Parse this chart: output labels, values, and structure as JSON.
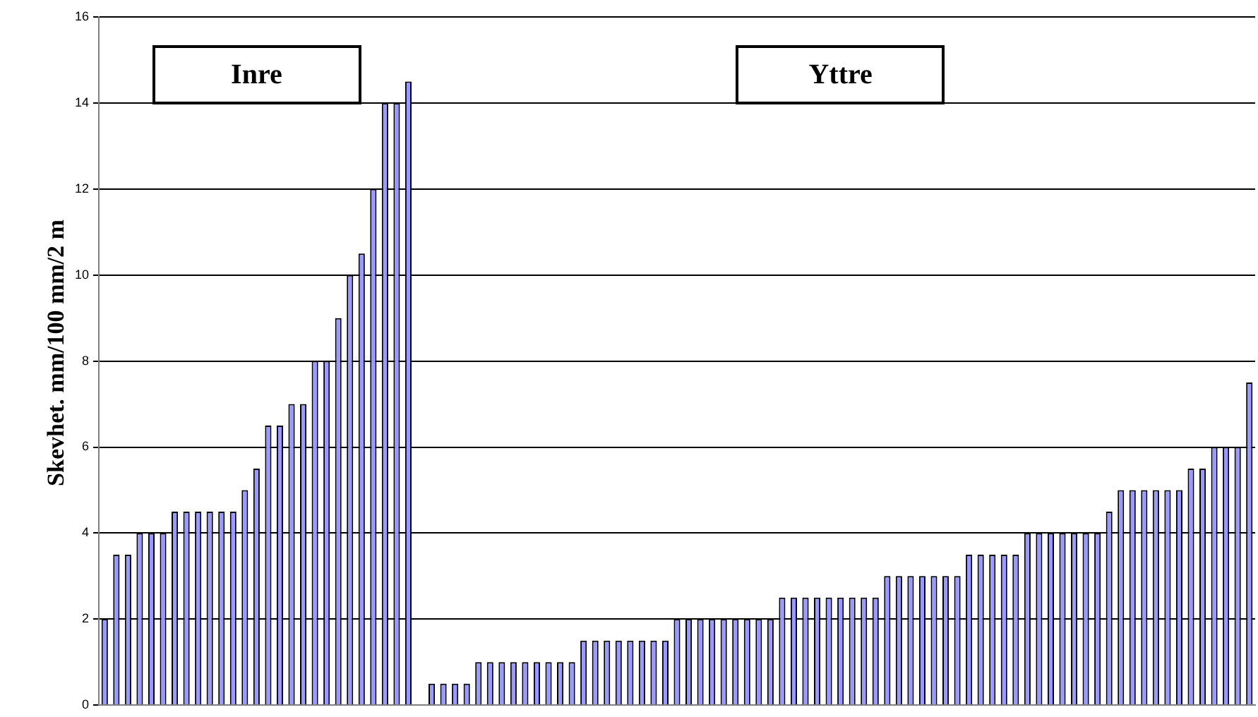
{
  "chart_data": {
    "type": "bar",
    "ylabel": "Skevhet. mm/100 mm/2 m",
    "annotations": [
      "Inre",
      "Yttre"
    ],
    "categories": [
      null,
      null,
      null,
      null,
      null,
      null,
      null,
      null,
      null,
      null,
      null,
      null,
      null,
      null,
      null,
      null,
      null,
      null,
      null,
      null,
      null,
      null,
      null,
      null,
      null,
      null,
      null,
      null,
      null,
      null,
      null,
      null,
      null,
      null,
      null,
      null,
      null,
      null,
      null,
      null,
      null,
      null,
      null,
      null,
      null,
      null,
      null,
      null,
      null,
      null,
      null,
      null,
      null,
      null,
      null,
      null,
      null,
      null,
      null,
      null,
      null,
      null,
      null,
      null,
      null,
      null,
      null,
      null,
      null,
      null,
      null,
      null,
      null,
      null,
      null,
      null,
      null,
      null,
      null,
      null,
      null,
      null,
      null,
      null,
      null,
      null,
      null,
      null,
      null,
      null,
      null,
      null,
      null,
      null,
      null,
      null,
      null,
      null,
      null
    ],
    "values": [
      2,
      3.5,
      3.5,
      4,
      4,
      4,
      4.5,
      4.5,
      4.5,
      4.5,
      4.5,
      4.5,
      5,
      5.5,
      6.5,
      6.5,
      7,
      7,
      8,
      8,
      9,
      10,
      10.5,
      12,
      14,
      14,
      14.5,
      null,
      0.5,
      0.5,
      0.5,
      0.5,
      1,
      1,
      1,
      1,
      1,
      1,
      1,
      1,
      1,
      1.5,
      1.5,
      1.5,
      1.5,
      1.5,
      1.5,
      1.5,
      1.5,
      2,
      2,
      2,
      2,
      2,
      2,
      2,
      2,
      2,
      2.5,
      2.5,
      2.5,
      2.5,
      2.5,
      2.5,
      2.5,
      2.5,
      2.5,
      3,
      3,
      3,
      3,
      3,
      3,
      3,
      3.5,
      3.5,
      3.5,
      3.5,
      3.5,
      4,
      4,
      4,
      4,
      4,
      4,
      4,
      4.5,
      5,
      5,
      5,
      5,
      5,
      5,
      5.5,
      5.5,
      6,
      6,
      6,
      7.5
    ],
    "color": "#9999ff",
    "ylim": [
      0,
      16
    ],
    "yticks": [
      0,
      2,
      4,
      6,
      8,
      10,
      12,
      14,
      16
    ],
    "grid": "y",
    "tick_labels": "y"
  }
}
